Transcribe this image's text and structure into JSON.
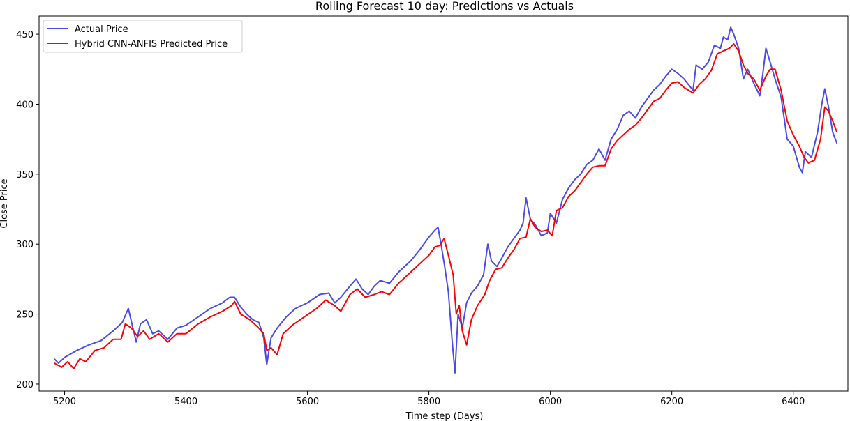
{
  "chart_data": {
    "type": "line",
    "title": "Rolling Forecast 10 day: Predictions vs Actuals",
    "xlabel": "Time step (Days)",
    "ylabel": "Close Price",
    "xlim": [
      5158,
      6490
    ],
    "ylim": [
      195,
      463
    ],
    "xticks": [
      5200,
      5400,
      5600,
      5800,
      6000,
      6200,
      6400
    ],
    "yticks": [
      200,
      250,
      300,
      350,
      400,
      450
    ],
    "grid": false,
    "legend_position": "top-left",
    "series": [
      {
        "name": "Actual Price",
        "color": "#4b4bea",
        "points": [
          [
            5183,
            218
          ],
          [
            5190,
            215
          ],
          [
            5200,
            219
          ],
          [
            5220,
            224
          ],
          [
            5240,
            228
          ],
          [
            5260,
            231
          ],
          [
            5280,
            238
          ],
          [
            5295,
            244
          ],
          [
            5305,
            254
          ],
          [
            5312,
            241
          ],
          [
            5318,
            230
          ],
          [
            5325,
            243
          ],
          [
            5335,
            246
          ],
          [
            5345,
            236
          ],
          [
            5355,
            238
          ],
          [
            5370,
            232
          ],
          [
            5385,
            240
          ],
          [
            5400,
            242
          ],
          [
            5420,
            248
          ],
          [
            5440,
            254
          ],
          [
            5460,
            258
          ],
          [
            5472,
            262
          ],
          [
            5480,
            262
          ],
          [
            5490,
            255
          ],
          [
            5500,
            250
          ],
          [
            5510,
            246
          ],
          [
            5520,
            244
          ],
          [
            5528,
            233
          ],
          [
            5533,
            214
          ],
          [
            5540,
            233
          ],
          [
            5550,
            240
          ],
          [
            5565,
            248
          ],
          [
            5580,
            254
          ],
          [
            5600,
            258
          ],
          [
            5620,
            264
          ],
          [
            5635,
            265
          ],
          [
            5645,
            258
          ],
          [
            5655,
            262
          ],
          [
            5670,
            270
          ],
          [
            5680,
            275
          ],
          [
            5690,
            268
          ],
          [
            5700,
            264
          ],
          [
            5710,
            270
          ],
          [
            5720,
            274
          ],
          [
            5735,
            272
          ],
          [
            5750,
            280
          ],
          [
            5770,
            288
          ],
          [
            5785,
            296
          ],
          [
            5800,
            305
          ],
          [
            5810,
            310
          ],
          [
            5815,
            312
          ],
          [
            5820,
            300
          ],
          [
            5826,
            284
          ],
          [
            5832,
            266
          ],
          [
            5838,
            232
          ],
          [
            5843,
            208
          ],
          [
            5848,
            250
          ],
          [
            5855,
            240
          ],
          [
            5862,
            258
          ],
          [
            5870,
            265
          ],
          [
            5880,
            270
          ],
          [
            5890,
            278
          ],
          [
            5897,
            300
          ],
          [
            5903,
            288
          ],
          [
            5912,
            284
          ],
          [
            5920,
            290
          ],
          [
            5930,
            298
          ],
          [
            5940,
            304
          ],
          [
            5950,
            310
          ],
          [
            5955,
            315
          ],
          [
            5960,
            333
          ],
          [
            5967,
            318
          ],
          [
            5975,
            314
          ],
          [
            5985,
            306
          ],
          [
            5995,
            308
          ],
          [
            6000,
            322
          ],
          [
            6010,
            315
          ],
          [
            6020,
            332
          ],
          [
            6030,
            340
          ],
          [
            6040,
            346
          ],
          [
            6050,
            350
          ],
          [
            6060,
            357
          ],
          [
            6070,
            360
          ],
          [
            6080,
            368
          ],
          [
            6090,
            360
          ],
          [
            6100,
            375
          ],
          [
            6110,
            382
          ],
          [
            6120,
            392
          ],
          [
            6130,
            395
          ],
          [
            6140,
            390
          ],
          [
            6150,
            398
          ],
          [
            6160,
            404
          ],
          [
            6170,
            410
          ],
          [
            6180,
            414
          ],
          [
            6190,
            420
          ],
          [
            6200,
            425
          ],
          [
            6210,
            422
          ],
          [
            6220,
            418
          ],
          [
            6235,
            410
          ],
          [
            6240,
            428
          ],
          [
            6250,
            425
          ],
          [
            6260,
            430
          ],
          [
            6270,
            442
          ],
          [
            6280,
            440
          ],
          [
            6285,
            448
          ],
          [
            6292,
            446
          ],
          [
            6297,
            455
          ],
          [
            6302,
            450
          ],
          [
            6310,
            440
          ],
          [
            6318,
            418
          ],
          [
            6325,
            425
          ],
          [
            6335,
            415
          ],
          [
            6345,
            406
          ],
          [
            6350,
            422
          ],
          [
            6355,
            440
          ],
          [
            6362,
            430
          ],
          [
            6370,
            418
          ],
          [
            6380,
            405
          ],
          [
            6390,
            375
          ],
          [
            6400,
            370
          ],
          [
            6410,
            355
          ],
          [
            6415,
            351
          ],
          [
            6420,
            366
          ],
          [
            6430,
            362
          ],
          [
            6440,
            380
          ],
          [
            6447,
            400
          ],
          [
            6452,
            411
          ],
          [
            6458,
            398
          ],
          [
            6465,
            380
          ],
          [
            6472,
            372
          ]
        ]
      },
      {
        "name": "Hybrid CNN-ANFIS Predicted Price",
        "color": "#ff0000",
        "points": [
          [
            5183,
            215
          ],
          [
            5195,
            212
          ],
          [
            5205,
            216
          ],
          [
            5215,
            211
          ],
          [
            5225,
            218
          ],
          [
            5235,
            216
          ],
          [
            5250,
            224
          ],
          [
            5265,
            226
          ],
          [
            5280,
            232
          ],
          [
            5293,
            232
          ],
          [
            5300,
            243
          ],
          [
            5310,
            240
          ],
          [
            5320,
            234
          ],
          [
            5330,
            238
          ],
          [
            5340,
            232
          ],
          [
            5355,
            236
          ],
          [
            5370,
            230
          ],
          [
            5385,
            236
          ],
          [
            5400,
            236
          ],
          [
            5420,
            243
          ],
          [
            5440,
            248
          ],
          [
            5460,
            252
          ],
          [
            5475,
            256
          ],
          [
            5480,
            259
          ],
          [
            5490,
            250
          ],
          [
            5505,
            246
          ],
          [
            5520,
            240
          ],
          [
            5528,
            236
          ],
          [
            5533,
            224
          ],
          [
            5540,
            226
          ],
          [
            5550,
            221
          ],
          [
            5560,
            236
          ],
          [
            5575,
            242
          ],
          [
            5595,
            248
          ],
          [
            5615,
            254
          ],
          [
            5630,
            260
          ],
          [
            5645,
            256
          ],
          [
            5655,
            252
          ],
          [
            5670,
            264
          ],
          [
            5682,
            268
          ],
          [
            5695,
            262
          ],
          [
            5710,
            264
          ],
          [
            5722,
            266
          ],
          [
            5735,
            264
          ],
          [
            5750,
            272
          ],
          [
            5770,
            280
          ],
          [
            5790,
            288
          ],
          [
            5800,
            292
          ],
          [
            5810,
            298
          ],
          [
            5818,
            299
          ],
          [
            5825,
            304
          ],
          [
            5832,
            292
          ],
          [
            5840,
            278
          ],
          [
            5845,
            250
          ],
          [
            5850,
            256
          ],
          [
            5855,
            238
          ],
          [
            5862,
            228
          ],
          [
            5870,
            246
          ],
          [
            5880,
            256
          ],
          [
            5892,
            264
          ],
          [
            5900,
            274
          ],
          [
            5910,
            282
          ],
          [
            5920,
            283
          ],
          [
            5930,
            290
          ],
          [
            5940,
            296
          ],
          [
            5950,
            304
          ],
          [
            5960,
            305
          ],
          [
            5967,
            318
          ],
          [
            5975,
            312
          ],
          [
            5985,
            309
          ],
          [
            5995,
            310
          ],
          [
            6003,
            306
          ],
          [
            6010,
            324
          ],
          [
            6020,
            326
          ],
          [
            6030,
            334
          ],
          [
            6040,
            338
          ],
          [
            6050,
            344
          ],
          [
            6060,
            350
          ],
          [
            6070,
            355
          ],
          [
            6080,
            356
          ],
          [
            6090,
            356
          ],
          [
            6100,
            368
          ],
          [
            6110,
            374
          ],
          [
            6120,
            378
          ],
          [
            6130,
            382
          ],
          [
            6140,
            385
          ],
          [
            6150,
            390
          ],
          [
            6160,
            396
          ],
          [
            6170,
            402
          ],
          [
            6180,
            404
          ],
          [
            6190,
            410
          ],
          [
            6200,
            415
          ],
          [
            6210,
            416
          ],
          [
            6220,
            412
          ],
          [
            6235,
            408
          ],
          [
            6245,
            414
          ],
          [
            6255,
            418
          ],
          [
            6265,
            424
          ],
          [
            6275,
            436
          ],
          [
            6285,
            438
          ],
          [
            6295,
            440
          ],
          [
            6302,
            443
          ],
          [
            6310,
            438
          ],
          [
            6318,
            428
          ],
          [
            6325,
            422
          ],
          [
            6335,
            418
          ],
          [
            6345,
            410
          ],
          [
            6355,
            420
          ],
          [
            6362,
            425
          ],
          [
            6370,
            425
          ],
          [
            6380,
            410
          ],
          [
            6390,
            388
          ],
          [
            6400,
            378
          ],
          [
            6410,
            370
          ],
          [
            6418,
            362
          ],
          [
            6425,
            358
          ],
          [
            6435,
            360
          ],
          [
            6445,
            375
          ],
          [
            6452,
            398
          ],
          [
            6458,
            395
          ],
          [
            6465,
            388
          ],
          [
            6472,
            380
          ]
        ]
      }
    ]
  }
}
